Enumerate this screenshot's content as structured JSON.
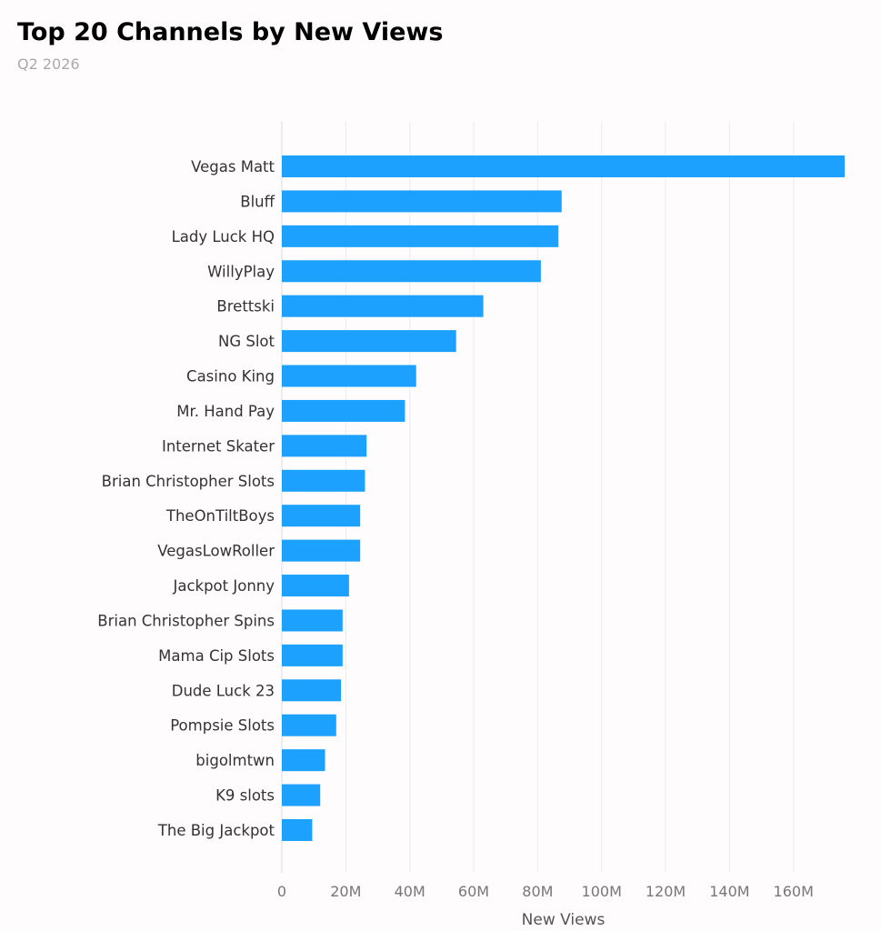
{
  "title": "Top 20 Channels by New Views",
  "subtitle": "Q2 2026",
  "chart_data": {
    "type": "bar",
    "orientation": "horizontal",
    "title": "Top 20 Channels by New Views",
    "subtitle": "Q2 2026",
    "xlabel": "New Views",
    "ylabel": "",
    "xlim": [
      0,
      176
    ],
    "x_unit": "M",
    "x_ticks": [
      0,
      20,
      40,
      60,
      80,
      100,
      120,
      140,
      160
    ],
    "x_tick_labels": [
      "0",
      "20M",
      "40M",
      "60M",
      "80M",
      "100M",
      "120M",
      "140M",
      "160M"
    ],
    "grid": "vertical",
    "legend": "none",
    "bar_color": "#1da1ff",
    "categories": [
      "Vegas Matt",
      "Bluff",
      "Lady Luck HQ",
      "WillyPlay",
      "Brettski",
      "NG Slot",
      "Casino King",
      "Mr. Hand Pay",
      "Internet Skater",
      "Brian Christopher Slots",
      "TheOnTiltBoys",
      "VegasLowRoller",
      "Jackpot Jonny",
      "Brian Christopher Spins",
      "Mama Cip Slots",
      "Dude Luck 23",
      "Pompsie Slots",
      "bigolmtwn",
      "K9 slots",
      "The Big Jackpot"
    ],
    "values": [
      176,
      87.5,
      86.5,
      81,
      63,
      54.5,
      42,
      38.5,
      26.5,
      26,
      24.5,
      24.5,
      21,
      19,
      19,
      18.5,
      17,
      13.5,
      12,
      9.5
    ]
  }
}
